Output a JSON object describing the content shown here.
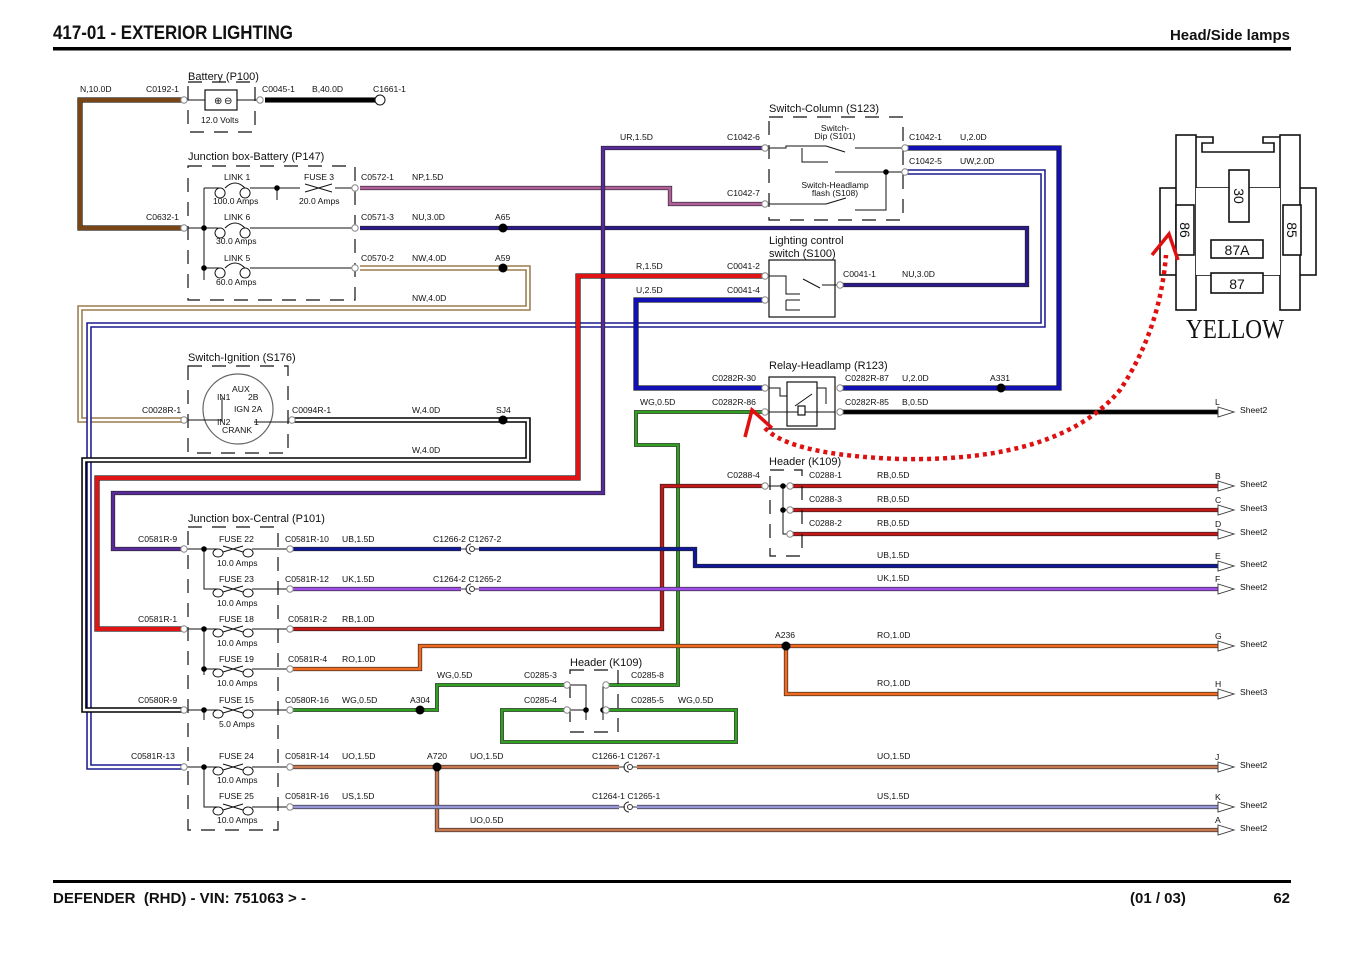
{
  "header": {
    "title": "417-01 - EXTERIOR LIGHTING",
    "subtitle": "Head/Side lamps"
  },
  "footer": {
    "vehicle": "DEFENDER  (RHD) - VIN: 751063 > -",
    "page_of": "(01 / 03)",
    "page": "62"
  },
  "wire_colors": {
    "N": "#7a4514",
    "B": "#000000",
    "NP": "#b0609a",
    "NU": "#2c1a8c",
    "NW": "#9c7c48",
    "UR": "#5a2a9a",
    "U": "#1010b4",
    "UW": "#1a1a90",
    "R": "#e01414",
    "W": "#000000",
    "WG": "#30a020",
    "RB": "#c41818",
    "UB": "#10189a",
    "UK": "#a050e8",
    "RO": "#f06a20",
    "UO": "#c87850",
    "US": "#9898d8"
  },
  "annotation_color": "#e01010",
  "battery": {
    "name": "Battery (P100)",
    "voltage": "12.0 Volts",
    "pins": [
      "C0192-1",
      "C0045-1",
      "C1661-1"
    ],
    "wire_in": "N,10.0D",
    "wire_out": "B,40.0D"
  },
  "jb_battery": {
    "name": "Junction box-Battery (P147)",
    "in_pin": "C0632-1",
    "elements": [
      {
        "name": "LINK 1",
        "rating": "100.0 Amps"
      },
      {
        "name": "FUSE 3",
        "rating": "20.0 Amps"
      },
      {
        "name": "LINK 6",
        "rating": "30.0 Amps"
      },
      {
        "name": "LINK 5",
        "rating": "60.0 Amps"
      }
    ],
    "out_pins": [
      "C0572-1",
      "C0571-3",
      "C0570-2"
    ],
    "wires": [
      "NP,1.5D",
      "NU,3.0D",
      "NW,4.0D",
      "NW,4.0D"
    ],
    "splices": [
      "A65",
      "A59"
    ]
  },
  "switch_column": {
    "name": "Switch-Column (S123)",
    "dip": [
      "Switch-",
      "Dip (S101)"
    ],
    "flash": [
      "Switch-Headlamp",
      "flash (S108)"
    ],
    "pins": [
      "C1042-6",
      "C1042-7",
      "C1042-1",
      "C1042-5"
    ],
    "wires": [
      "UR,1.5D",
      "U,2.0D",
      "UW,2.0D"
    ]
  },
  "lighting_switch": {
    "name": [
      "Lighting control",
      "switch (S100)"
    ],
    "pins": [
      "C0041-2",
      "C0041-4",
      "C0041-1"
    ],
    "wires": [
      "R,1.5D",
      "U,2.5D",
      "NU,3.0D"
    ]
  },
  "relay": {
    "name": "Relay-Headlamp (R123)",
    "pins": [
      "C0282R-30",
      "C0282R-86",
      "C0282R-87",
      "C0282R-85"
    ],
    "wires": [
      "WG,0.5D",
      "U,2.0D",
      "B,0.5D"
    ],
    "splice": "A331"
  },
  "ignition": {
    "name": "Switch-Ignition (S176)",
    "pins": [
      "C0028R-1",
      "C0094R-1"
    ],
    "positions": [
      "AUX",
      "2B",
      "IN1",
      "IGN 2A",
      "IN2",
      "1",
      "CRANK"
    ],
    "wires": [
      "W,4.0D",
      "W,4.0D"
    ],
    "splice": "SJ4"
  },
  "header_k109_a": {
    "name": "Header (K109)",
    "pins": [
      "C0288-4",
      "C0288-1",
      "C0288-3",
      "C0288-2"
    ]
  },
  "header_k109_b": {
    "name": "Header (K109)",
    "pins": [
      "C0285-3",
      "C0285-4",
      "C0285-8",
      "C0285-5"
    ],
    "wires": [
      "WG,0.5D",
      "WG,0.5D"
    ]
  },
  "jb_central": {
    "name": "Junction box-Central (P101)",
    "in_pins": [
      "C0581R-9",
      "C0581R-1",
      "C0580R-9",
      "C0581R-13"
    ],
    "fuses": [
      {
        "name": "FUSE 22",
        "rating": "10.0 Amps",
        "pin": "C0581R-10",
        "wire": "UB,1.5D"
      },
      {
        "name": "FUSE 23",
        "rating": "10.0 Amps",
        "pin": "C0581R-12",
        "wire": "UK,1.5D"
      },
      {
        "name": "FUSE 18",
        "rating": "10.0 Amps",
        "pin": "C0581R-2",
        "wire": "RB,1.0D"
      },
      {
        "name": "FUSE 19",
        "rating": "10.0 Amps",
        "pin": "C0581R-4",
        "wire": "RO,1.0D"
      },
      {
        "name": "FUSE 15",
        "rating": "5.0 Amps",
        "pin": "C0580R-16",
        "wire": "WG,0.5D"
      },
      {
        "name": "FUSE 24",
        "rating": "10.0 Amps",
        "pin": "C0581R-14",
        "wire": "UO,1.5D"
      },
      {
        "name": "FUSE 25",
        "rating": "10.0 Amps",
        "pin": "C0581R-16",
        "wire": "US,1.5D"
      }
    ]
  },
  "inline_connectors": [
    "C1266-2 C1267-2",
    "C1264-2 C1265-2",
    "C1266-1 C1267-1",
    "C1264-1 C1265-1"
  ],
  "splices": {
    "a304": "A304",
    "a720": "A720",
    "a236": "A236"
  },
  "mid_wires": [
    "UO,1.5D"
  ],
  "outputs": [
    {
      "letter": "L",
      "sheet": "Sheet2"
    },
    {
      "letter": "B",
      "sheet": "Sheet2",
      "wire": "RB,0.5D"
    },
    {
      "letter": "C",
      "sheet": "Sheet3",
      "wire": "RB,0.5D"
    },
    {
      "letter": "D",
      "sheet": "Sheet2",
      "wire": "RB,0.5D"
    },
    {
      "letter": "E",
      "sheet": "Sheet2",
      "wire": "UB,1.5D"
    },
    {
      "letter": "F",
      "sheet": "Sheet2",
      "wire": "UK,1.5D"
    },
    {
      "letter": "G",
      "sheet": "Sheet2",
      "wire": "RO,1.0D"
    },
    {
      "letter": "H",
      "sheet": "Sheet3",
      "wire": "RO,1.0D"
    },
    {
      "letter": "J",
      "sheet": "Sheet2",
      "wire": "UO,1.5D"
    },
    {
      "letter": "K",
      "sheet": "Sheet2",
      "wire": "US,1.5D"
    },
    {
      "letter": "A",
      "sheet": "Sheet2",
      "wire": "UO,0.5D"
    }
  ],
  "relay_pinout": {
    "pins": [
      "30",
      "86",
      "85",
      "87A",
      "87"
    ],
    "color_label": "YELLOW"
  }
}
